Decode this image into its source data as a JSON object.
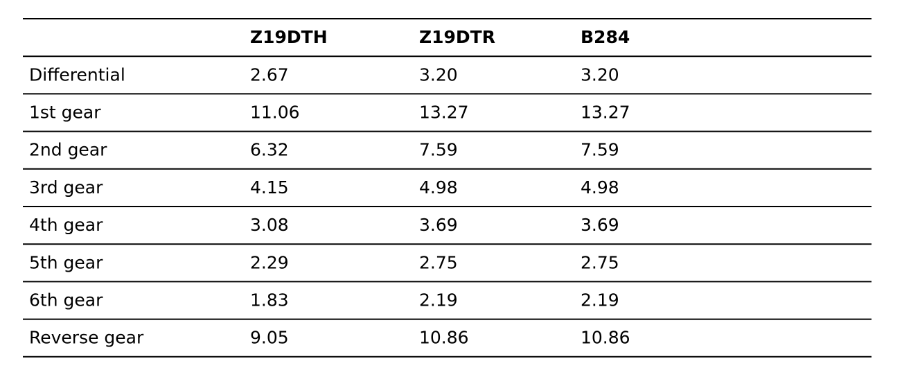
{
  "table": {
    "header": [
      "Z19DTH",
      "Z19DTR",
      "B284"
    ],
    "rows": [
      [
        "Differential",
        "2.67",
        "3.20",
        "3.20"
      ],
      [
        "1st gear",
        "11.06",
        "13.27",
        "13.27"
      ],
      [
        "2nd gear",
        "6.32",
        "7.59",
        "7.59"
      ],
      [
        "3rd gear",
        "4.15",
        "4.98",
        "4.98"
      ],
      [
        "4th gear",
        "3.08",
        "3.69",
        "3.69"
      ],
      [
        "5th gear",
        "2.29",
        "2.75",
        "2.75"
      ],
      [
        "6th gear",
        "1.83",
        "2.19",
        "2.19"
      ],
      [
        "Reverse gear",
        "9.05",
        "10.86",
        "10.86"
      ]
    ]
  }
}
